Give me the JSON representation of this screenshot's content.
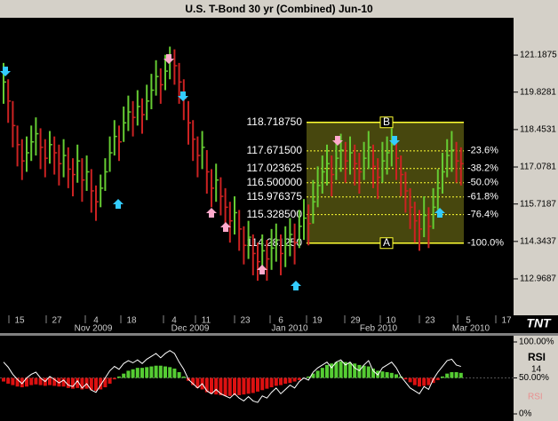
{
  "chart_data": [
    {
      "type": "ohlc",
      "title": "U.S. T-Bond 30 yr (Combined) Jun-10",
      "up_color": "#66cc33",
      "down_color": "#cc2222",
      "high": [
        120.9,
        120.3,
        119.5,
        118.6,
        118.1,
        118.2,
        118.6,
        118.9,
        118.5,
        118.1,
        118.4,
        118.2,
        117.9,
        118.1,
        117.8,
        117.4,
        117.9,
        117.4,
        117.5,
        117.0,
        116.4,
        116.8,
        117.4,
        118.2,
        118.8,
        118.6,
        119.3,
        119.7,
        119.5,
        119.9,
        119.6,
        120.1,
        120.5,
        121.0,
        120.7,
        121.2,
        121.5,
        121.4,
        120.9,
        120.3,
        119.5,
        118.8,
        118.2,
        118.4,
        117.7,
        117.0,
        117.2,
        116.7,
        116.3,
        115.8,
        116.0,
        115.5,
        114.9,
        115.1,
        114.6,
        114.3,
        114.6,
        114.4,
        114.8,
        115.0,
        114.6,
        114.9,
        115.2,
        115.0,
        115.5,
        115.9,
        115.7,
        116.6,
        117.1,
        117.5,
        117.9,
        117.5,
        118.0,
        118.3,
        118.0,
        118.2,
        117.9,
        117.6,
        118.0,
        118.4,
        117.9,
        117.4,
        118.0,
        118.2,
        118.5,
        118.1,
        117.5,
        116.9,
        116.3,
        115.8,
        115.5,
        116.0,
        115.6,
        116.3,
        117.0,
        117.6,
        118.1,
        118.4,
        118.0,
        117.8
      ],
      "low": [
        119.4,
        118.7,
        117.8,
        117.1,
        116.6,
        116.9,
        117.3,
        117.5,
        117.0,
        116.7,
        117.2,
        116.8,
        116.4,
        116.7,
        116.3,
        116.0,
        116.5,
        115.8,
        116.2,
        115.4,
        115.1,
        115.6,
        116.2,
        116.9,
        117.5,
        117.3,
        118.0,
        118.4,
        118.2,
        118.6,
        118.3,
        118.8,
        119.2,
        119.7,
        119.4,
        119.9,
        120.3,
        120.1,
        119.4,
        118.8,
        117.9,
        117.3,
        116.7,
        117.0,
        116.1,
        115.6,
        115.8,
        115.3,
        114.8,
        114.3,
        114.6,
        114.0,
        113.5,
        113.7,
        113.1,
        112.9,
        113.2,
        112.9,
        113.3,
        113.6,
        113.1,
        113.4,
        113.8,
        113.5,
        114.1,
        114.4,
        114.2,
        115.0,
        115.6,
        116.1,
        116.4,
        116.0,
        116.6,
        116.9,
        116.5,
        116.8,
        116.4,
        116.1,
        116.6,
        117.0,
        116.3,
        115.9,
        116.5,
        116.8,
        117.1,
        116.6,
        116.0,
        115.4,
        114.8,
        114.3,
        114.0,
        114.5,
        114.1,
        114.8,
        115.5,
        116.1,
        116.7,
        116.9,
        116.5,
        116.4
      ],
      "close": [
        120.2,
        119.5,
        118.6,
        117.9,
        117.3,
        117.6,
        118.0,
        118.3,
        117.8,
        117.4,
        117.9,
        117.6,
        117.2,
        117.5,
        117.0,
        116.8,
        117.3,
        116.6,
        116.9,
        116.2,
        115.8,
        116.3,
        116.9,
        117.6,
        118.2,
        118.0,
        118.7,
        119.1,
        118.9,
        119.3,
        119.0,
        119.5,
        119.9,
        120.4,
        120.1,
        120.6,
        121.0,
        120.8,
        120.2,
        119.6,
        118.7,
        118.1,
        117.5,
        117.8,
        116.9,
        116.3,
        116.6,
        116.0,
        115.6,
        115.1,
        115.4,
        114.8,
        114.2,
        114.5,
        113.9,
        113.6,
        114.0,
        113.7,
        114.1,
        114.4,
        113.9,
        114.2,
        114.6,
        114.3,
        114.9,
        115.2,
        115.0,
        115.8,
        116.4,
        116.9,
        117.2,
        116.8,
        117.4,
        117.7,
        117.3,
        117.6,
        117.2,
        116.9,
        117.4,
        117.8,
        117.1,
        116.7,
        117.3,
        117.6,
        117.9,
        117.4,
        116.8,
        116.2,
        115.6,
        115.1,
        114.8,
        115.3,
        114.9,
        115.6,
        116.3,
        116.9,
        117.5,
        117.7,
        117.3,
        117.2
      ],
      "ylim": [
        111.63,
        122.56
      ],
      "yticks": [
        121.1875,
        119.8281,
        118.4531,
        117.0781,
        115.7187,
        114.3437,
        112.9687
      ],
      "day_labels": [
        "15",
        "27",
        "4",
        "18",
        "4",
        "11",
        "23",
        "6",
        "19",
        "29",
        "10",
        "23",
        "5",
        "17"
      ],
      "month_labels": [
        "Nov 2009",
        "Dec 2009",
        "Jan 2010",
        "Feb 2010",
        "Mar 2010"
      ],
      "logo": "TNT",
      "fib_levels": [
        {
          "value": 118.71875,
          "label": "118.718750"
        },
        {
          "value": 117.6715,
          "label": "117.671500"
        },
        117.023625,
        {
          "value": 116.5,
          "label": "116.500000"
        },
        115.976375,
        {
          "value": 115.3285,
          "label": "115.328500"
        },
        {
          "value": 114.28125,
          "label": "114.281250"
        }
      ],
      "fib_percents": [
        {
          "value": -23.6,
          "label": "-23.6%"
        },
        {
          "value": -38.2,
          "label": "-38.2%"
        },
        {
          "value": -50.0,
          "label": "-50.0%"
        },
        {
          "value": -61.8,
          "label": "-61.8%"
        },
        {
          "value": -76.4,
          "label": "-76.4%"
        },
        {
          "value": -100.0,
          "label": "-100.0%"
        }
      ],
      "fib_top_label": "B",
      "fib_bottom_label": "A",
      "fib_color": "#ffff33"
    },
    {
      "type": "rsi",
      "period": 14,
      "series": [
        {
          "name": "RSI",
          "color": "#ffffff",
          "values": [
            72,
            65,
            55,
            48,
            42,
            50,
            55,
            58,
            50,
            45,
            52,
            48,
            43,
            47,
            40,
            38,
            46,
            36,
            42,
            33,
            30,
            40,
            50,
            60,
            66,
            62,
            70,
            74,
            71,
            75,
            70,
            76,
            80,
            84,
            78,
            84,
            88,
            84,
            72,
            62,
            48,
            42,
            36,
            42,
            32,
            28,
            34,
            28,
            25,
            22,
            28,
            22,
            18,
            24,
            18,
            16,
            25,
            22,
            30,
            36,
            28,
            34,
            40,
            36,
            45,
            50,
            47,
            58,
            64,
            68,
            72,
            64,
            72,
            75,
            68,
            72,
            64,
            60,
            68,
            74,
            60,
            54,
            64,
            68,
            72,
            64,
            52,
            44,
            36,
            32,
            28,
            38,
            34,
            48,
            58,
            66,
            74,
            76,
            68,
            66
          ]
        }
      ],
      "histogram": [
        45,
        42,
        40,
        38,
        37,
        38,
        40,
        41,
        40,
        39,
        40,
        39,
        38,
        38,
        36,
        35,
        36,
        34,
        35,
        33,
        32,
        34,
        37,
        42,
        48,
        52,
        56,
        60,
        62,
        64,
        64,
        65,
        66,
        67,
        67,
        66,
        65,
        63,
        58,
        52,
        46,
        40,
        36,
        34,
        30,
        28,
        27,
        26,
        25,
        25,
        26,
        26,
        27,
        28,
        29,
        31,
        33,
        35,
        37,
        39,
        40,
        42,
        43,
        45,
        47,
        50,
        52,
        56,
        60,
        64,
        68,
        70,
        72,
        73,
        72,
        71,
        70,
        68,
        67,
        66,
        63,
        60,
        59,
        58,
        57,
        55,
        52,
        48,
        44,
        40,
        38,
        39,
        40,
        43,
        47,
        52,
        56,
        58,
        58,
        57
      ],
      "ylim": [
        0,
        100
      ],
      "yticks": [
        {
          "value": 100,
          "label": "100.00%"
        },
        {
          "value": 50,
          "label": "50.00%"
        },
        {
          "value": 0,
          "label": "0%"
        }
      ]
    }
  ]
}
